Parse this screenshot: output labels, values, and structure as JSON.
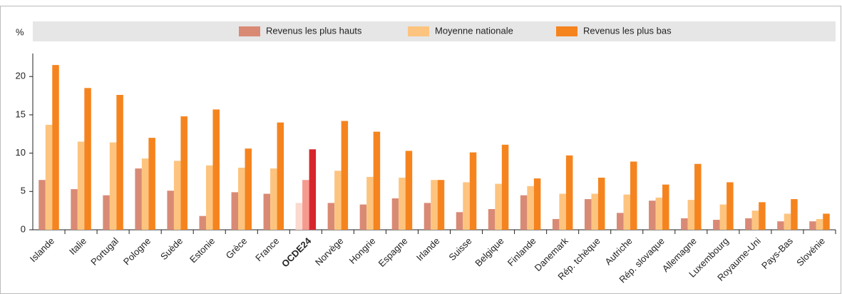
{
  "chart_data": {
    "type": "bar",
    "y_unit": "%",
    "categories": [
      "Islande",
      "Italie",
      "Portugal",
      "Pologne",
      "Suède",
      "Estonie",
      "Grèce",
      "France",
      "OCDE24",
      "Norvège",
      "Hongrie",
      "Espagne",
      "Irlande",
      "Suisse",
      "Belgique",
      "Finlande",
      "Danemark",
      "Rép. tchèque",
      "Autriche",
      "Rép. slovaque",
      "Allemagne",
      "Luxembourg",
      "Royaume-Uni",
      "Pays-Bas",
      "Slovénie"
    ],
    "series": [
      {
        "name": "Revenus les plus hauts",
        "color": "#d98a75",
        "highlight_color": "#fbd9cf",
        "values": [
          6.5,
          5.3,
          4.5,
          8.0,
          5.1,
          1.8,
          4.9,
          4.7,
          3.5,
          3.5,
          3.3,
          4.1,
          3.5,
          2.3,
          2.7,
          4.5,
          1.4,
          4.0,
          2.2,
          3.8,
          1.5,
          1.3,
          1.5,
          1.1,
          1.1
        ]
      },
      {
        "name": "Moyenne nationale",
        "color": "#fdc47f",
        "highlight_color": "#f59a8f",
        "values": [
          13.7,
          11.5,
          11.4,
          9.3,
          9.0,
          8.4,
          8.1,
          8.0,
          6.5,
          7.7,
          6.9,
          6.8,
          6.5,
          6.2,
          6.0,
          5.7,
          4.7,
          4.7,
          4.6,
          4.2,
          3.9,
          3.3,
          2.5,
          2.1,
          1.4
        ]
      },
      {
        "name": "Revenus les plus bas",
        "color": "#f5841f",
        "highlight_color": "#d7262b",
        "values": [
          21.5,
          18.5,
          17.6,
          12.0,
          14.8,
          15.7,
          10.6,
          14.0,
          10.5,
          14.2,
          12.8,
          10.3,
          6.5,
          10.1,
          11.1,
          6.7,
          9.7,
          6.8,
          8.9,
          5.9,
          8.6,
          6.2,
          3.6,
          4.0,
          2.1
        ]
      }
    ],
    "highlight_category": 8,
    "ylim": [
      0,
      23
    ],
    "yticks": [
      0,
      5,
      10,
      15,
      20
    ],
    "grid": false
  }
}
